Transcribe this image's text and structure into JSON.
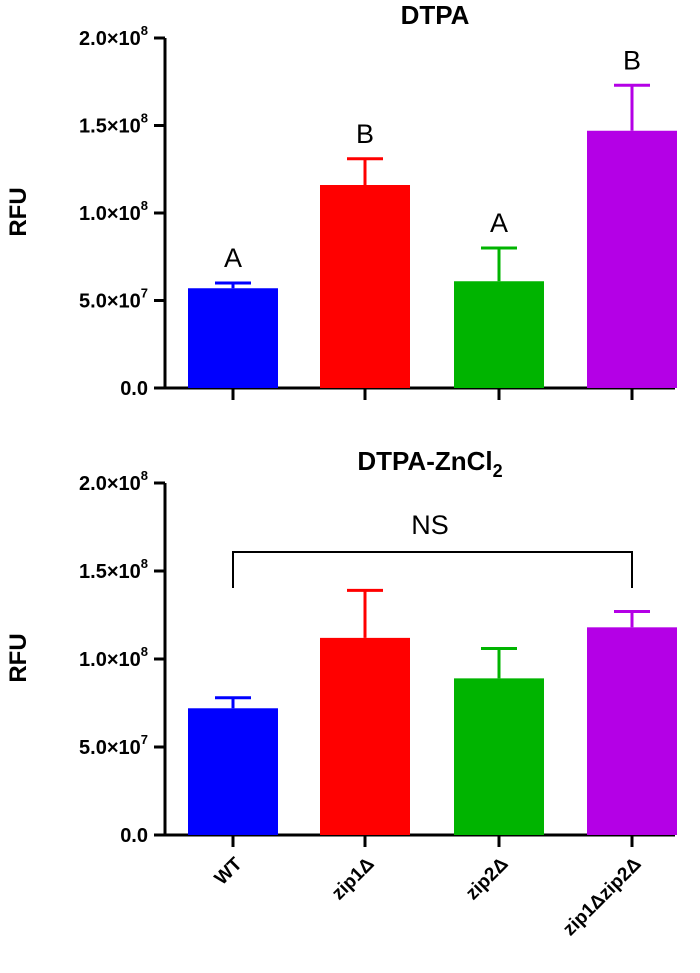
{
  "chart_data": [
    {
      "type": "bar",
      "title": "DTPA",
      "xlabel": "",
      "ylabel": "RFU",
      "ylim": [
        0,
        200000000
      ],
      "ytick_values": [
        0,
        50000000,
        100000000,
        150000000,
        200000000
      ],
      "ytick_labels": [
        {
          "mantissa": "0.0",
          "exp": ""
        },
        {
          "mantissa": "5.0×10",
          "exp": "7"
        },
        {
          "mantissa": "1.0×10",
          "exp": "8"
        },
        {
          "mantissa": "1.5×10",
          "exp": "8"
        },
        {
          "mantissa": "2.0×10",
          "exp": "8"
        }
      ],
      "categories": [
        "WT",
        "zip1Δ",
        "zip2Δ",
        "zip1Δzip2Δ"
      ],
      "values": [
        57000000,
        116000000,
        61000000,
        147000000
      ],
      "errors": [
        3000000,
        15000000,
        19000000,
        26000000
      ],
      "colors": [
        "#0000ff",
        "#ff0000",
        "#00b400",
        "#b400e6"
      ],
      "significance_letters": [
        "A",
        "B",
        "A",
        "B"
      ]
    },
    {
      "type": "bar",
      "title_main": "DTPA-ZnCl",
      "title_sub": "2",
      "xlabel": "",
      "ylabel": "RFU",
      "ylim": [
        0,
        200000000
      ],
      "ytick_values": [
        0,
        50000000,
        100000000,
        150000000,
        200000000
      ],
      "ytick_labels": [
        {
          "mantissa": "0.0",
          "exp": ""
        },
        {
          "mantissa": "5.0×10",
          "exp": "7"
        },
        {
          "mantissa": "1.0×10",
          "exp": "8"
        },
        {
          "mantissa": "1.5×10",
          "exp": "8"
        },
        {
          "mantissa": "2.0×10",
          "exp": "8"
        }
      ],
      "categories": [
        "WT",
        "zip1Δ",
        "zip2Δ",
        "zip1Δzip2Δ"
      ],
      "values": [
        72000000,
        112000000,
        89000000,
        118000000
      ],
      "errors": [
        6000000,
        27000000,
        17000000,
        9000000
      ],
      "colors": [
        "#0000ff",
        "#ff0000",
        "#00b400",
        "#b400e6"
      ],
      "bracket_label": "NS"
    }
  ]
}
